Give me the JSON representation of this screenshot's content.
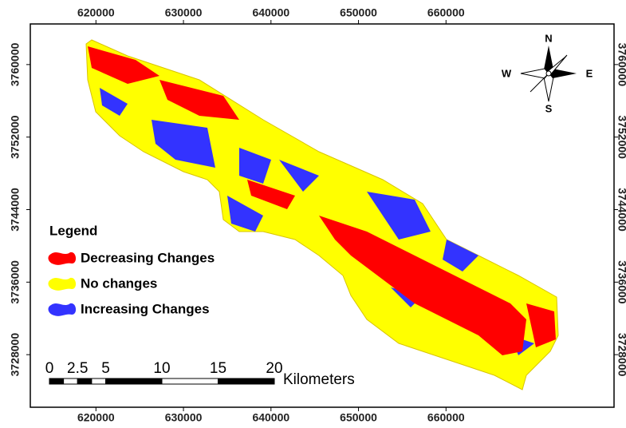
{
  "map": {
    "xticks": [
      620000,
      630000,
      640000,
      650000,
      660000
    ],
    "yticks": [
      3760000,
      3752000,
      3744000,
      3736000,
      3728000
    ],
    "xlim": [
      612500,
      679200
    ],
    "ylim": [
      3722200,
      3764480
    ],
    "compass": {
      "n": "N",
      "e": "E",
      "s": "S",
      "w": "W"
    },
    "legend": {
      "title": "Legend",
      "items": [
        {
          "label": "Decreasing Changes",
          "color": "#ff0000"
        },
        {
          "label": "No changes",
          "color": "#ffff00"
        },
        {
          "label": "Increasing Changes",
          "color": "#3333ff"
        }
      ]
    },
    "scale_bar": {
      "ticks": [
        0,
        2.5,
        5,
        10,
        15,
        20
      ],
      "unit": "Kilometers"
    }
  }
}
